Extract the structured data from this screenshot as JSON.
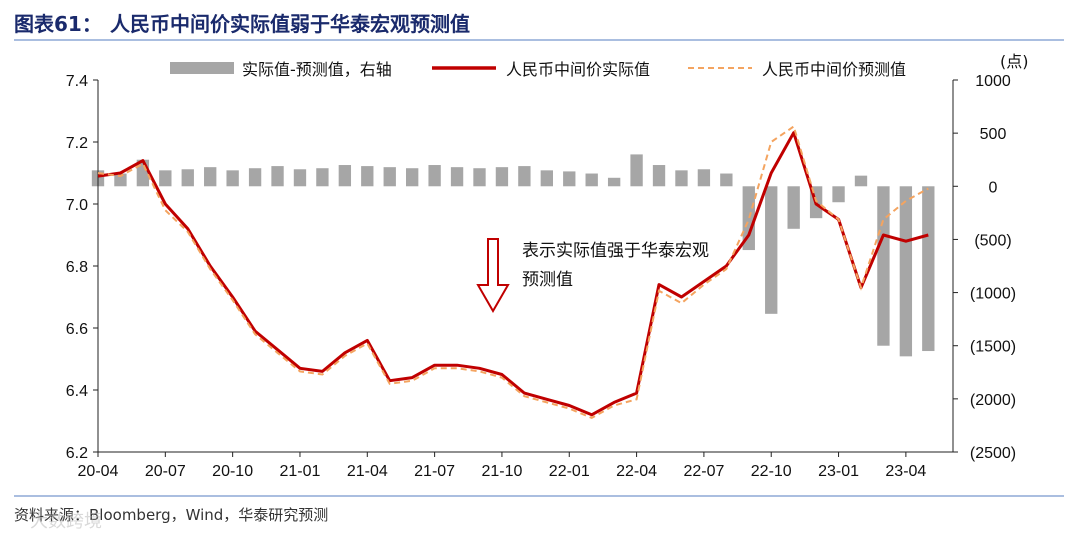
{
  "figure": {
    "number_label": "图表61：",
    "title": "人民币中间价实际值弱于华泰宏观预测值",
    "source": "资料来源：Bloomberg，Wind，华泰研究预测",
    "watermark": "大数跨境",
    "colors": {
      "title": "#1a2a6c",
      "rule": "#8ea9d6",
      "actual": "#c00000",
      "forecast": "#f4a460",
      "diff": "#a6a6a6"
    }
  },
  "chart_data": {
    "type": "line",
    "left_axis": {
      "ylim": [
        6.2,
        7.4
      ],
      "ticks": [
        "7.4",
        "7.2",
        "7.0",
        "6.8",
        "6.6",
        "6.4",
        "6.2"
      ]
    },
    "right_axis": {
      "unit": "(点)",
      "ylim": [
        -2500,
        1000
      ],
      "ticks": [
        "1000",
        "500",
        "0",
        "(500)",
        "(1000)",
        "(1500)",
        "(2000)",
        "(2500)"
      ]
    },
    "x_axis": {
      "ticks": [
        "20-04",
        "20-07",
        "20-10",
        "21-01",
        "21-04",
        "21-07",
        "21-10",
        "22-01",
        "22-04",
        "22-07",
        "22-10",
        "23-01",
        "23-04"
      ]
    },
    "legend": [
      {
        "label": "实际值-预测值，右轴",
        "style": "gray-bar"
      },
      {
        "label": "人民币中间价实际值",
        "style": "red-line"
      },
      {
        "label": "人民币中间价预测值",
        "style": "orange-dashed"
      }
    ],
    "annotation": {
      "line1": "表示实际值强于华泰宏观",
      "line2": "预测值"
    },
    "series": [
      {
        "name": "人民币中间价实际值",
        "axis": "left",
        "x": [
          "20-04",
          "20-05",
          "20-06",
          "20-07",
          "20-08",
          "20-09",
          "20-10",
          "20-11",
          "20-12",
          "21-01",
          "21-02",
          "21-03",
          "21-04",
          "21-05",
          "21-06",
          "21-07",
          "21-08",
          "21-09",
          "21-10",
          "21-11",
          "21-12",
          "22-01",
          "22-02",
          "22-03",
          "22-04",
          "22-05",
          "22-06",
          "22-07",
          "22-08",
          "22-09",
          "22-10",
          "22-11",
          "22-12",
          "23-01",
          "23-02",
          "23-03",
          "23-04",
          "23-05"
        ],
        "values": [
          7.09,
          7.1,
          7.14,
          7.0,
          6.92,
          6.8,
          6.7,
          6.59,
          6.53,
          6.47,
          6.46,
          6.52,
          6.56,
          6.43,
          6.44,
          6.48,
          6.48,
          6.47,
          6.45,
          6.39,
          6.37,
          6.35,
          6.32,
          6.36,
          6.39,
          6.74,
          6.7,
          6.75,
          6.8,
          6.9,
          7.1,
          7.23,
          7.0,
          6.95,
          6.73,
          6.9,
          6.88,
          6.9
        ]
      },
      {
        "name": "人民币中间价预测值",
        "axis": "left",
        "x": [
          "20-04",
          "20-05",
          "20-06",
          "20-07",
          "20-08",
          "20-09",
          "20-10",
          "20-11",
          "20-12",
          "21-01",
          "21-02",
          "21-03",
          "21-04",
          "21-05",
          "21-06",
          "21-07",
          "21-08",
          "21-09",
          "21-10",
          "21-11",
          "21-12",
          "22-01",
          "22-02",
          "22-03",
          "22-04",
          "22-05",
          "22-06",
          "22-07",
          "22-08",
          "22-09",
          "22-10",
          "22-11",
          "22-12",
          "23-01",
          "23-02",
          "23-03",
          "23-04",
          "23-05"
        ],
        "values": [
          7.1,
          7.09,
          7.13,
          6.98,
          6.91,
          6.79,
          6.69,
          6.58,
          6.52,
          6.46,
          6.45,
          6.51,
          6.55,
          6.42,
          6.43,
          6.47,
          6.47,
          6.46,
          6.44,
          6.38,
          6.36,
          6.34,
          6.31,
          6.35,
          6.37,
          6.72,
          6.68,
          6.74,
          6.79,
          6.95,
          7.2,
          7.25,
          7.01,
          6.95,
          6.73,
          6.95,
          7.01,
          7.05
        ]
      },
      {
        "name": "实际值-预测值，右轴",
        "axis": "right",
        "x": [
          "20-04",
          "20-05",
          "20-06",
          "20-07",
          "20-08",
          "20-09",
          "20-10",
          "20-11",
          "20-12",
          "21-01",
          "21-02",
          "21-03",
          "21-04",
          "21-05",
          "21-06",
          "21-07",
          "21-08",
          "21-09",
          "21-10",
          "21-11",
          "21-12",
          "22-01",
          "22-02",
          "22-03",
          "22-04",
          "22-05",
          "22-06",
          "22-07",
          "22-08",
          "22-09",
          "22-10",
          "22-11",
          "22-12",
          "23-01",
          "23-02",
          "23-03",
          "23-04",
          "23-05"
        ],
        "values": [
          150,
          120,
          250,
          150,
          160,
          180,
          150,
          170,
          190,
          160,
          170,
          200,
          190,
          180,
          170,
          200,
          180,
          170,
          180,
          190,
          150,
          140,
          120,
          80,
          300,
          200,
          150,
          160,
          120,
          -600,
          -1200,
          -400,
          -300,
          -150,
          100,
          -1500,
          -1600,
          -1550
        ]
      }
    ]
  }
}
